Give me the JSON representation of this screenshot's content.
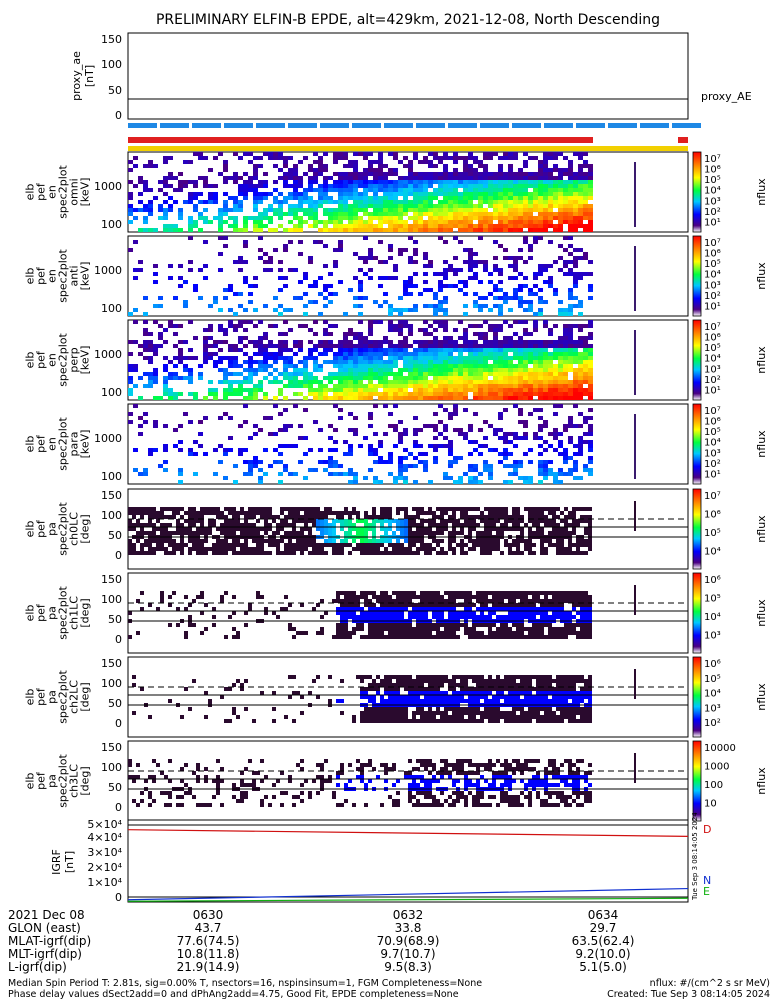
{
  "title": "PRELIMINARY ELFIN-B EPDE, alt=429km, 2021-12-08, North Descending",
  "proxy_panel": {
    "ylabel": [
      "proxy_ae",
      "[nT]"
    ],
    "yticks": [
      "150",
      "100",
      "50",
      "0"
    ],
    "right_label": "proxy_AE",
    "value": 35
  },
  "status_bars": {
    "blue": "#1e88e5",
    "red": "#e02020",
    "yellow": "#f2d000"
  },
  "energy_panels": [
    {
      "ylabel": [
        "elb",
        "pef",
        "en",
        "spec2plot",
        "omni",
        "[keV]"
      ],
      "yticks": [
        "1000",
        "100"
      ],
      "cbar_unit": "nflux",
      "cbar_ticks": [
        "10⁷",
        "10⁶",
        "10⁵",
        "10⁴",
        "10³",
        "10²",
        "10¹"
      ]
    },
    {
      "ylabel": [
        "elb",
        "pef",
        "en",
        "spec2plot",
        "anti",
        "[keV]"
      ],
      "yticks": [
        "1000",
        "100"
      ],
      "cbar_unit": "nflux",
      "cbar_ticks": [
        "10⁷",
        "10⁶",
        "10⁵",
        "10⁴",
        "10³",
        "10²",
        "10¹"
      ]
    },
    {
      "ylabel": [
        "elb",
        "pef",
        "en",
        "spec2plot",
        "perp",
        "[keV]"
      ],
      "yticks": [
        "1000",
        "100"
      ],
      "cbar_unit": "nflux",
      "cbar_ticks": [
        "10⁷",
        "10⁶",
        "10⁵",
        "10⁴",
        "10³",
        "10²",
        "10¹"
      ]
    },
    {
      "ylabel": [
        "elb",
        "pef",
        "en",
        "spec2plot",
        "para",
        "[keV]"
      ],
      "yticks": [
        "1000",
        "100"
      ],
      "cbar_unit": "nflux",
      "cbar_ticks": [
        "10⁷",
        "10⁶",
        "10⁵",
        "10⁴",
        "10³",
        "10²",
        "10¹"
      ]
    }
  ],
  "pa_panels": [
    {
      "ylabel": [
        "elb",
        "pef",
        "pa",
        "spec2plot",
        "ch0LC",
        "[deg]"
      ],
      "yticks": [
        "150",
        "100",
        "50",
        "0"
      ],
      "cbar_unit": "nflux",
      "cbar_ticks": [
        "10⁷",
        "10⁶",
        "10⁵",
        "10⁴"
      ]
    },
    {
      "ylabel": [
        "elb",
        "pef",
        "pa",
        "spec2plot",
        "ch1LC",
        "[deg]"
      ],
      "yticks": [
        "150",
        "100",
        "50",
        "0"
      ],
      "cbar_unit": "nflux",
      "cbar_ticks": [
        "10⁶",
        "10⁵",
        "10⁴",
        "10³"
      ]
    },
    {
      "ylabel": [
        "elb",
        "pef",
        "pa",
        "spec2plot",
        "ch2LC",
        "[deg]"
      ],
      "yticks": [
        "150",
        "100",
        "50",
        "0"
      ],
      "cbar_unit": "nflux",
      "cbar_ticks": [
        "10⁶",
        "10⁵",
        "10⁴",
        "10³",
        "10²"
      ]
    },
    {
      "ylabel": [
        "elb",
        "pef",
        "pa",
        "spec2plot",
        "ch3LC",
        "[deg]"
      ],
      "yticks": [
        "150",
        "100",
        "50",
        "0"
      ],
      "cbar_unit": "nflux",
      "cbar_ticks": [
        "10000",
        "1000",
        "100",
        "10"
      ]
    }
  ],
  "bfield_panel": {
    "ylabel": [
      "IGRF",
      "[nT]"
    ],
    "yticks": [
      "5×10⁴",
      "4×10⁴",
      "3×10⁴",
      "2×10⁴",
      "1×10⁴",
      "0"
    ],
    "legend": [
      {
        "label": "D",
        "color": "#d01010"
      },
      {
        "label": "N",
        "color": "#1030d0"
      },
      {
        "label": "E",
        "color": "#10b010"
      }
    ],
    "vertical_stamp": "Tue Sep 3 08:14:05 2024"
  },
  "chart_data": {
    "type": "heatmap",
    "title": "PRELIMINARY ELFIN-B EPDE, alt=429km, 2021-12-08, North Descending",
    "x_tick_labels": [
      "0630",
      "0632",
      "0634"
    ],
    "proxy_ae": {
      "ylim": [
        0,
        150
      ],
      "value": 35
    },
    "energy_ylim_keV": [
      63,
      7000
    ],
    "pa_ylim_deg": [
      0,
      180
    ],
    "bfield": {
      "ylim": [
        0,
        55000
      ],
      "series": [
        {
          "name": "D",
          "start": 48500,
          "end": 44000
        },
        {
          "name": "N",
          "start": 1500,
          "end": 9000
        },
        {
          "name": "E",
          "start": 500,
          "end": 2500
        }
      ]
    }
  },
  "footer": {
    "rows": [
      {
        "label": "2021 Dec 08",
        "values": [
          "0630",
          "0632",
          "0634"
        ]
      },
      {
        "label": "GLON (east)",
        "values": [
          "43.7",
          "33.8",
          "29.7"
        ]
      },
      {
        "label": "MLAT-igrf(dip)",
        "values": [
          "77.6(74.5)",
          "70.9(68.9)",
          "63.5(62.4)"
        ]
      },
      {
        "label": "MLT-igrf(dip)",
        "values": [
          "10.8(11.8)",
          "9.7(10.7)",
          "9.2(10.0)"
        ]
      },
      {
        "label": "L-igrf(dip)",
        "values": [
          "21.9(14.9)",
          "9.5(8.3)",
          "5.1(5.0)"
        ]
      }
    ],
    "line1_left": "Median Spin Period T: 2.81s, sig=0.00% T, nsectors=16, nspinsinsum=1, FGM Completeness=None",
    "line1_right": "nflux: #/(cm^2 s sr MeV)",
    "line2_left": "Phase delay values dSect2add=0 and dPhAng2add=4.75, Good Fit, EPDE completeness=None",
    "line2_right": "Created: Tue Sep  3 08:14:05 2024"
  }
}
